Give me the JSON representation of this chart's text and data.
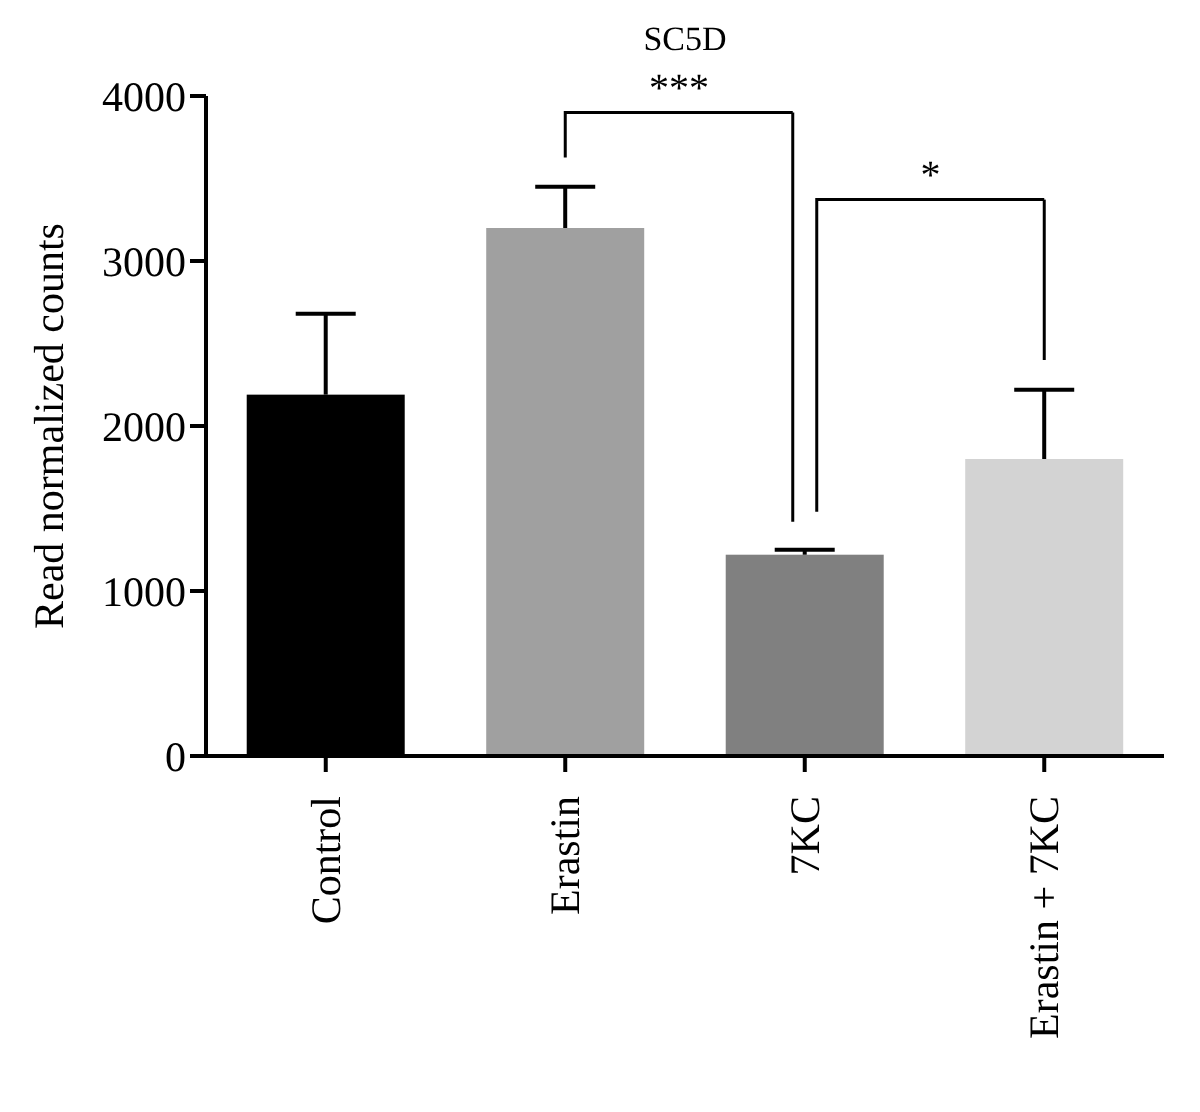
{
  "chart_data": {
    "type": "bar",
    "title": "SC5D",
    "ylabel": "Read normalized counts",
    "categories": [
      "Control",
      "Erastin",
      "7KC",
      "Erastin + 7KC"
    ],
    "values": [
      2190,
      3200,
      1220,
      1800
    ],
    "colors": [
      "#000000",
      "#a0a0a0",
      "#808080",
      "#d3d3d3"
    ],
    "errors": [
      [
        2190,
        2680
      ],
      [
        3200,
        3450
      ],
      [
        1220,
        1250
      ],
      [
        1800,
        2220
      ]
    ],
    "ylim": [
      0,
      4000
    ],
    "yticks": [
      0,
      1000,
      2000,
      3000,
      4000
    ],
    "annotations": [
      "***",
      "*"
    ],
    "grid": false,
    "legend": false
  }
}
